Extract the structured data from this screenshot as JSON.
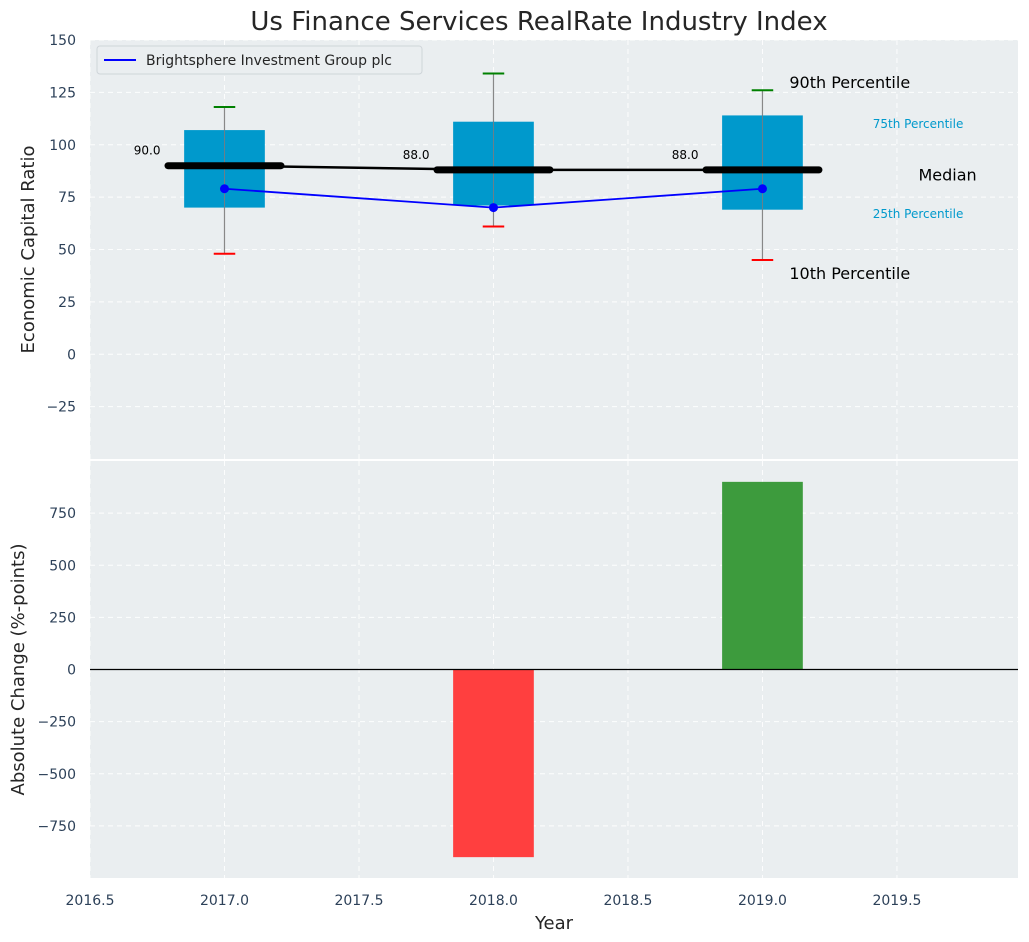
{
  "chart_data": [
    {
      "type": "box",
      "title": "Us Finance Services RealRate Industry Index",
      "ylabel": "Economic Capital Ratio",
      "ylim": [
        -50,
        150
      ],
      "yticks": [
        -25,
        0,
        25,
        50,
        75,
        100,
        125,
        150
      ],
      "xlim": [
        2016.5,
        2019.95
      ],
      "categories": [
        2017,
        2018,
        2019
      ],
      "p10": [
        48,
        61,
        45
      ],
      "p25": [
        70,
        71,
        69
      ],
      "median": [
        90,
        88,
        88
      ],
      "p75": [
        107,
        111,
        114
      ],
      "p90": [
        118,
        134,
        126
      ],
      "median_labels": [
        "90.0",
        "88.0",
        "88.0"
      ],
      "series": [
        {
          "name": "Brightsphere Investment Group plc",
          "values": [
            79,
            70,
            79
          ],
          "color": "#0000ff"
        }
      ],
      "legend_position": "top-left",
      "annotations": {
        "p90": "90th Percentile",
        "p75": "75th Percentile",
        "median": "Median",
        "p25": "25th Percentile",
        "p10": "10th Percentile"
      },
      "colors": {
        "box": "#0099cc",
        "median": "#000000",
        "whisker_top": "#008000",
        "whisker_bottom": "#ff0000",
        "annotation_accent": "#0099cc"
      },
      "grid": true
    },
    {
      "type": "bar",
      "xlabel": "Year",
      "ylabel": "Absolute Change (%-points)",
      "ylim": [
        -1000,
        1000
      ],
      "yticks": [
        -750,
        -500,
        -250,
        0,
        250,
        500,
        750
      ],
      "xlim": [
        2016.5,
        2019.95
      ],
      "xticks": [
        2016.5,
        2017.0,
        2017.5,
        2018.0,
        2018.5,
        2019.0,
        2019.5
      ],
      "xtick_labels": [
        "2016.5",
        "2017.0",
        "2017.5",
        "2018.0",
        "2018.5",
        "2019.0",
        "2019.5"
      ],
      "categories": [
        2018,
        2019
      ],
      "values": [
        -900,
        900
      ],
      "colors": {
        "negative": "#ff3f3f",
        "positive": "#3d9b3d"
      },
      "grid": true
    }
  ]
}
